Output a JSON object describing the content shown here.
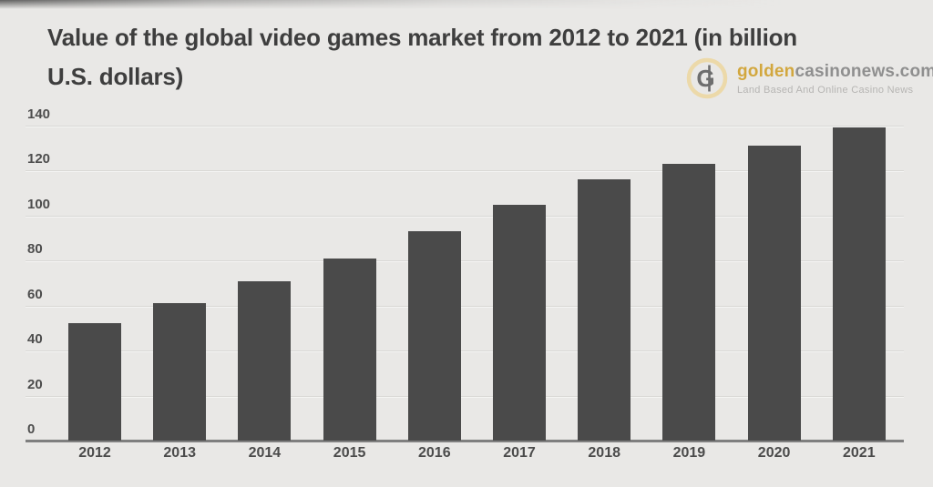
{
  "header": {
    "title_line1": "Value of the global video games market from 2012 to 2021 (in billion",
    "title_line2": "U.S. dollars)"
  },
  "brand": {
    "icon_letter": "G",
    "name_gold": "golden",
    "name_gray": "casinonews.com",
    "tagline": "Land Based And Online Casino News",
    "gold_color": "#d2a73e",
    "ring_color": "#ecd9a9",
    "letter_color": "#6e6e6e",
    "text_gray_color": "#8f8f8f",
    "tagline_color": "#b6b5b3"
  },
  "chart_data": {
    "type": "bar",
    "title": "Value of the global video games market from 2012 to 2021 (in billion U.S. dollars)",
    "categories": [
      "2012",
      "2013",
      "2014",
      "2015",
      "2016",
      "2017",
      "2018",
      "2019",
      "2020",
      "2021"
    ],
    "values": [
      52,
      61,
      71,
      81,
      93,
      105,
      116,
      123,
      131,
      139
    ],
    "xlabel": "",
    "ylabel": "",
    "ylim": [
      0,
      140
    ],
    "yticks": [
      0,
      20,
      40,
      60,
      80,
      100,
      120,
      140
    ],
    "grid": true,
    "legend": false,
    "bar_color": "#4a4a4a",
    "background_color": "#e9e8e6"
  }
}
